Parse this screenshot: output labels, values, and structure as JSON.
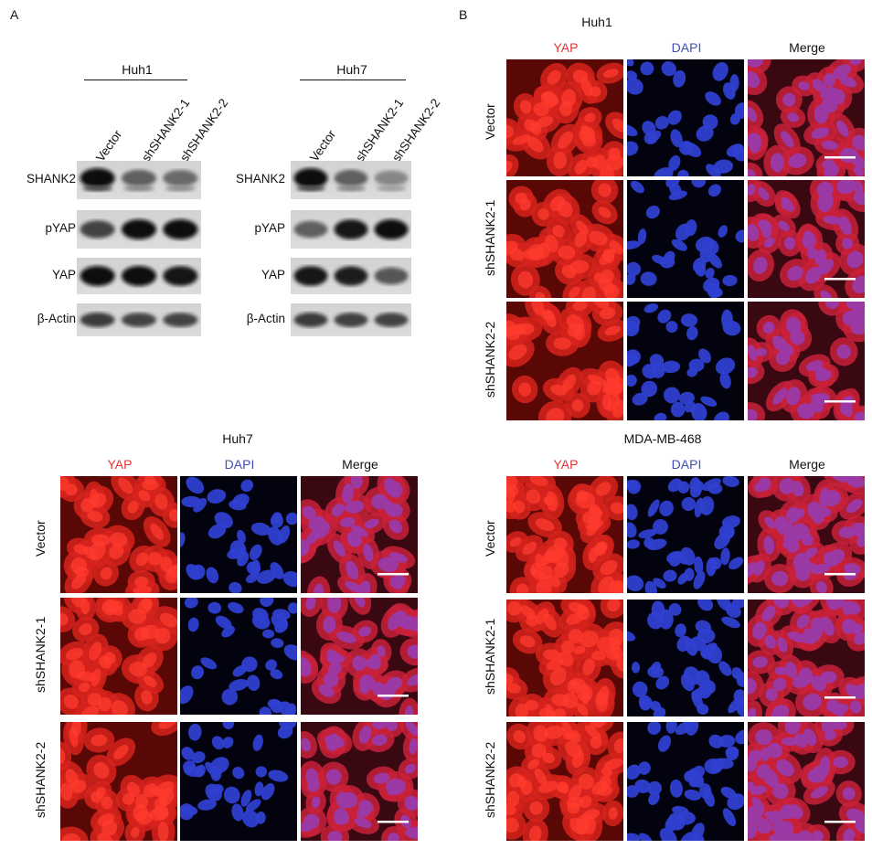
{
  "panels": {
    "a_letter": "A",
    "b_letter": "B"
  },
  "western": {
    "lanes": [
      "Vector",
      "shSHANK2-1",
      "shSHANK2-2"
    ],
    "proteins": [
      "SHANK2",
      "pYAP",
      "YAP",
      "β-Actin"
    ],
    "blots": [
      {
        "cell_line": "Huh1"
      },
      {
        "cell_line": "Huh7"
      }
    ]
  },
  "if_panels": [
    {
      "cell_line": "Huh1"
    },
    {
      "cell_line": "Huh7"
    },
    {
      "cell_line": "MDA-MB-468"
    }
  ],
  "if_columns": [
    "YAP",
    "DAPI",
    "Merge"
  ],
  "if_rows": [
    "Vector",
    "shSHANK2-1",
    "shSHANK2-2"
  ],
  "colors": {
    "yap": "#e8322e",
    "dapi": "#3f4fb5",
    "merge": "#111111"
  }
}
